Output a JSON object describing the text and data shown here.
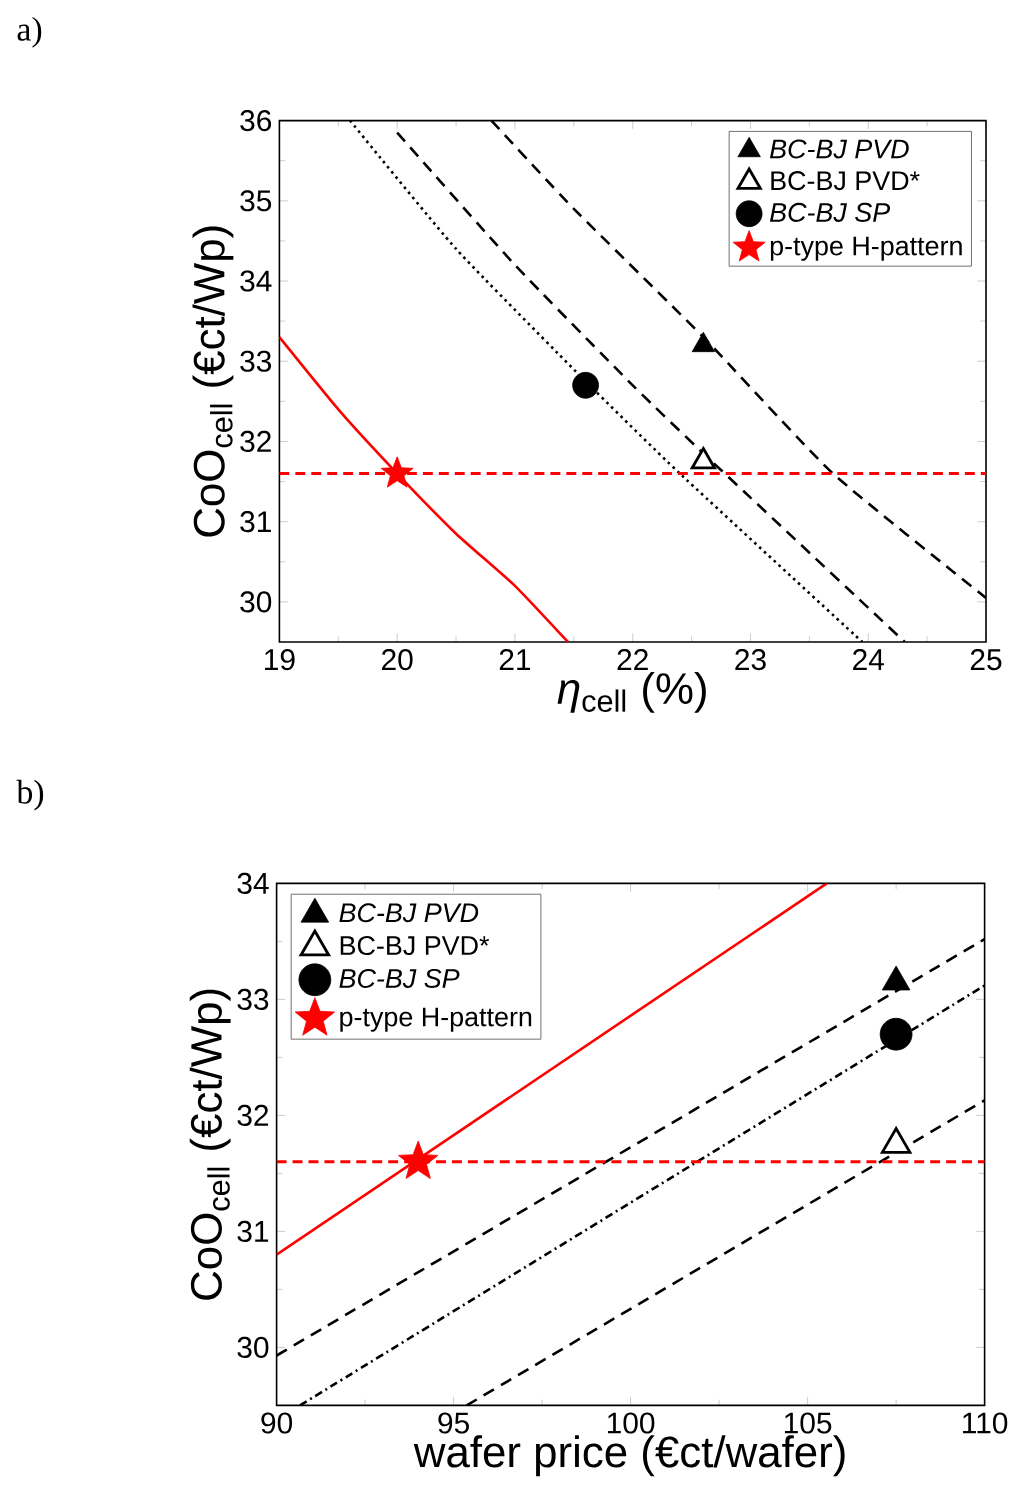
{
  "chart_data": [
    {
      "type": "line",
      "annotations": [
        "a)"
      ],
      "xlabel": "*η*$_{cell}$ (%)",
      "ylabel": "CoO$_{cell}$ (€ct/Wp)",
      "xlim": [
        19,
        25
      ],
      "ylim": [
        29.5,
        36
      ],
      "xticks": [
        19,
        20,
        21,
        22,
        23,
        24,
        25
      ],
      "yticks": [
        30,
        31,
        32,
        33,
        34,
        35,
        36
      ],
      "legend": "top right",
      "grid": false,
      "series": [
        {
          "type": "line",
          "color": "#ff0000",
          "line_style": "solid",
          "x": [
            19,
            19.5,
            20,
            20.5,
            21,
            21.45
          ],
          "values": [
            33.3,
            32.4,
            31.6,
            30.85,
            30.2,
            29.5
          ]
        },
        {
          "type": "line",
          "color": "#000000",
          "line_style": "dashed",
          "x": [
            20.8,
            21.5,
            22.6,
            23.7,
            25
          ],
          "values": [
            36,
            34.9,
            33.3,
            31.6,
            30.05
          ]
        },
        {
          "type": "line",
          "color": "#000000",
          "line_style": "dashed",
          "x": [
            20,
            21,
            22,
            22.6,
            23,
            24.31
          ],
          "values": [
            35.85,
            34.2,
            32.7,
            31.85,
            31.3,
            29.5
          ]
        },
        {
          "type": "line",
          "color": "#000000",
          "line_style": "dotted",
          "x": [
            19.6,
            20.5,
            21.6,
            22.4,
            23.95
          ],
          "values": [
            36,
            34.4,
            32.75,
            31.6,
            29.5
          ]
        },
        {
          "type": "scatter",
          "name": "*BC-BJ PVD*",
          "color": "#000000",
          "marker": "triangle",
          "x": [
            22.6
          ],
          "values": [
            33.2
          ]
        },
        {
          "type": "scatter",
          "name": "BC-BJ PVD*",
          "color": "#000000",
          "marker": "triangle_open",
          "x": [
            22.6
          ],
          "values": [
            31.75
          ]
        },
        {
          "type": "scatter",
          "name": "*BC-BJ SP*",
          "color": "#000000",
          "marker": "circle",
          "x": [
            21.6
          ],
          "values": [
            32.7
          ]
        },
        {
          "type": "scatter",
          "name": "p-type H-pattern",
          "color": "#ff0000",
          "marker": "star",
          "x": [
            20
          ],
          "values": [
            31.6
          ]
        }
      ],
      "ref_lines": [
        {
          "axis": "y",
          "value": 31.6,
          "color": "#ff0000",
          "line_style": "dashed"
        }
      ]
    },
    {
      "type": "line",
      "annotations": [
        "b)"
      ],
      "xlabel": "wafer price (€ct/wafer)",
      "ylabel": "CoO$_{cell}$ (€ct/Wp)",
      "xlim": [
        90,
        110
      ],
      "ylim": [
        29.5,
        34
      ],
      "xticks": [
        90,
        95,
        100,
        105,
        110
      ],
      "yticks": [
        30,
        31,
        32,
        33,
        34
      ],
      "legend": "top left",
      "grid": false,
      "series": [
        {
          "type": "line",
          "color": "#ff0000",
          "line_style": "solid",
          "x": [
            90,
            105.54
          ],
          "values": [
            30.8,
            34
          ]
        },
        {
          "type": "line",
          "color": "#000000",
          "line_style": "dashed",
          "x": [
            90,
            110
          ],
          "values": [
            29.93,
            33.52
          ]
        },
        {
          "type": "line",
          "color": "#000000",
          "line_style": "dashdot",
          "x": [
            90.66,
            110
          ],
          "values": [
            29.5,
            33.12
          ]
        },
        {
          "type": "line",
          "color": "#000000",
          "line_style": "dashed",
          "x": [
            95.37,
            110
          ],
          "values": [
            29.5,
            32.13
          ]
        },
        {
          "type": "scatter",
          "name": "*BC-BJ PVD*",
          "color": "#000000",
          "marker": "triangle",
          "x": [
            107.5
          ],
          "values": [
            33.15
          ]
        },
        {
          "type": "scatter",
          "name": "BC-BJ PVD*",
          "color": "#000000",
          "marker": "triangle_open",
          "x": [
            107.5
          ],
          "values": [
            31.75
          ]
        },
        {
          "type": "scatter",
          "name": "*BC-BJ SP*",
          "color": "#000000",
          "marker": "circle",
          "x": [
            107.5
          ],
          "values": [
            32.7
          ]
        },
        {
          "type": "scatter",
          "name": "p-type H-pattern",
          "color": "#ff0000",
          "marker": "star",
          "x": [
            94
          ],
          "values": [
            31.6
          ]
        }
      ],
      "ref_lines": [
        {
          "axis": "y",
          "value": 31.6,
          "color": "#ff0000",
          "line_style": "dashed"
        }
      ]
    }
  ]
}
